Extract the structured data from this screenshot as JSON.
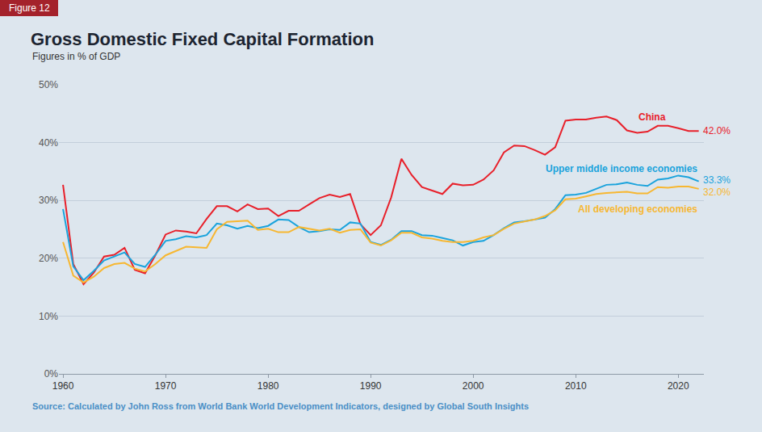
{
  "chart_data": {
    "type": "line",
    "badge": "Figure 12",
    "title": "Gross Domestic Fixed Capital Formation",
    "subtitle": "Figures in % of GDP",
    "source": "Source: Calculated by John Ross from World Bank World Development Indicators, designed by Global South Insights",
    "x": [
      1960,
      1961,
      1962,
      1963,
      1964,
      1965,
      1966,
      1967,
      1968,
      1969,
      1970,
      1971,
      1972,
      1973,
      1974,
      1975,
      1976,
      1977,
      1978,
      1979,
      1980,
      1981,
      1982,
      1983,
      1984,
      1985,
      1986,
      1987,
      1988,
      1989,
      1990,
      1991,
      1992,
      1993,
      1994,
      1995,
      1996,
      1997,
      1998,
      1999,
      2000,
      2001,
      2002,
      2003,
      2004,
      2005,
      2006,
      2007,
      2008,
      2009,
      2010,
      2011,
      2012,
      2013,
      2014,
      2015,
      2016,
      2017,
      2018,
      2019,
      2020,
      2021,
      2022
    ],
    "series": [
      {
        "name": "China",
        "color": "#e8202a",
        "values": [
          32.7,
          19.0,
          15.5,
          17.5,
          20.3,
          20.6,
          21.8,
          18.0,
          17.4,
          20.5,
          24.1,
          24.8,
          24.6,
          24.3,
          26.8,
          29.0,
          29.0,
          28.1,
          29.3,
          28.5,
          28.6,
          27.3,
          28.2,
          28.2,
          29.3,
          30.4,
          31.0,
          30.6,
          31.1,
          25.9,
          24.0,
          25.7,
          30.5,
          37.2,
          34.4,
          32.3,
          31.7,
          31.1,
          32.9,
          32.6,
          32.7,
          33.6,
          35.2,
          38.3,
          39.5,
          39.4,
          38.7,
          37.9,
          39.2,
          43.8,
          44.0,
          44.0,
          44.3,
          44.5,
          43.9,
          42.1,
          41.7,
          41.9,
          42.9,
          42.9,
          42.5,
          42.0,
          42.0
        ],
        "value_labels": [
          null,
          null,
          null,
          null,
          null,
          null,
          null,
          null,
          null,
          null,
          null,
          null,
          null,
          null,
          null,
          null,
          null,
          null,
          null,
          null,
          null,
          null,
          null,
          null,
          null,
          null,
          null,
          null,
          null,
          null,
          null,
          null,
          null,
          null,
          null,
          null,
          null,
          null,
          null,
          null,
          null,
          null,
          null,
          null,
          null,
          null,
          null,
          null,
          null,
          null,
          null,
          null,
          null,
          null,
          null,
          null,
          null,
          null,
          null,
          null,
          null,
          null,
          "42.0%"
        ]
      },
      {
        "name": "Upper middle income economies",
        "color": "#1aa3dc",
        "values": [
          28.5,
          18.6,
          16.2,
          17.8,
          19.6,
          20.3,
          21.0,
          19.0,
          18.5,
          20.6,
          23.0,
          23.3,
          23.8,
          23.6,
          24.0,
          26.0,
          25.7,
          25.1,
          25.6,
          25.2,
          25.6,
          26.7,
          26.6,
          25.4,
          24.5,
          24.7,
          25.0,
          24.9,
          26.2,
          26.0,
          22.8,
          22.3,
          23.2,
          24.7,
          24.7,
          24.0,
          23.9,
          23.5,
          23.1,
          22.2,
          22.8,
          23.0,
          24.0,
          25.2,
          26.2,
          26.4,
          26.7,
          27.0,
          28.5,
          30.9,
          31.0,
          31.3,
          32.0,
          32.7,
          32.8,
          33.1,
          32.7,
          32.5,
          33.6,
          33.8,
          34.3,
          34.0,
          33.3
        ],
        "value_labels": [
          null,
          null,
          null,
          null,
          null,
          null,
          null,
          null,
          null,
          null,
          null,
          null,
          null,
          null,
          null,
          null,
          null,
          null,
          null,
          null,
          null,
          null,
          null,
          null,
          null,
          null,
          null,
          null,
          null,
          null,
          null,
          null,
          null,
          null,
          null,
          null,
          null,
          null,
          null,
          null,
          null,
          null,
          null,
          null,
          null,
          null,
          null,
          null,
          null,
          null,
          null,
          null,
          null,
          null,
          null,
          null,
          null,
          null,
          null,
          null,
          null,
          null,
          "33.3%"
        ]
      },
      {
        "name": "All developing economies",
        "color": "#f7b731",
        "values": [
          22.8,
          17.0,
          15.8,
          16.8,
          18.3,
          19.0,
          19.2,
          18.2,
          17.7,
          19.0,
          20.5,
          21.2,
          22.0,
          21.9,
          21.8,
          25.0,
          26.3,
          26.4,
          26.5,
          24.9,
          25.1,
          24.5,
          24.5,
          25.4,
          25.1,
          24.8,
          25.1,
          24.4,
          24.9,
          25.0,
          22.7,
          22.2,
          23.1,
          24.4,
          24.4,
          23.6,
          23.4,
          23.0,
          22.8,
          22.8,
          23.0,
          23.6,
          24.0,
          25.1,
          26.0,
          26.4,
          26.7,
          27.3,
          28.3,
          30.2,
          30.3,
          30.7,
          31.1,
          31.3,
          31.4,
          31.5,
          31.2,
          31.2,
          32.3,
          32.2,
          32.4,
          32.4,
          32.0
        ],
        "value_labels": [
          null,
          null,
          null,
          null,
          null,
          null,
          null,
          null,
          null,
          null,
          null,
          null,
          null,
          null,
          null,
          null,
          null,
          null,
          null,
          null,
          null,
          null,
          null,
          null,
          null,
          null,
          null,
          null,
          null,
          null,
          null,
          null,
          null,
          null,
          null,
          null,
          null,
          null,
          null,
          null,
          null,
          null,
          null,
          null,
          null,
          null,
          null,
          null,
          null,
          null,
          null,
          null,
          null,
          null,
          null,
          null,
          null,
          null,
          null,
          null,
          null,
          null,
          "32.0%"
        ]
      }
    ],
    "xlim": [
      1959.6,
      2022.5
    ],
    "xticks": [
      1960,
      1970,
      1980,
      1990,
      2000,
      2010,
      2020
    ],
    "ylim": [
      0,
      50
    ],
    "yticks": [
      {
        "value": 0,
        "label": "0%"
      },
      {
        "value": 10,
        "label": "10%"
      },
      {
        "value": 20,
        "label": "20%"
      },
      {
        "value": 30,
        "label": "30%"
      },
      {
        "value": 40,
        "label": "40%"
      },
      {
        "value": 50,
        "label": "50%"
      }
    ],
    "grid": true
  }
}
